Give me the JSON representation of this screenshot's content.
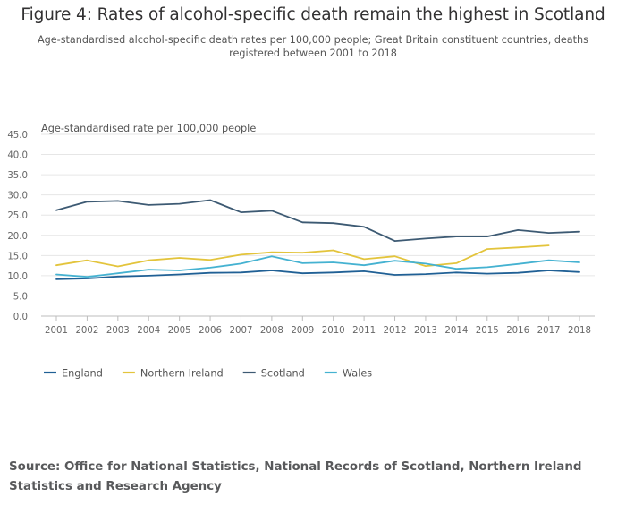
{
  "header": {
    "title": "Figure 4: Rates of alcohol-specific death remain the highest in Scotland",
    "subtitle": "Age-standardised alcohol-specific death rates per 100,000 people; Great Britain constituent countries, deaths registered between 2001 to 2018"
  },
  "footer": {
    "source": "Source: Office for National Statistics, National Records of Scotland, Northern Ireland Statistics and Research Agency"
  },
  "chart_data": {
    "type": "line",
    "ylabel": "Age-standardised rate per 100,000 people",
    "xlabel": "",
    "x": [
      "2001",
      "2002",
      "2003",
      "2004",
      "2005",
      "2006",
      "2007",
      "2008",
      "2009",
      "2010",
      "2011",
      "2012",
      "2013",
      "2014",
      "2015",
      "2016",
      "2017",
      "2018"
    ],
    "ylim": [
      0,
      45
    ],
    "yticks": [
      "0.0",
      "5.0",
      "10.0",
      "15.0",
      "20.0",
      "25.0",
      "30.0",
      "35.0",
      "40.0",
      "45.0"
    ],
    "grid": "horizontal",
    "legend_position": "bottom-left",
    "series": [
      {
        "name": "England",
        "color": "#206095",
        "values": [
          9.1,
          9.3,
          9.8,
          10.0,
          10.3,
          10.7,
          10.8,
          11.3,
          10.6,
          10.8,
          11.1,
          10.2,
          10.4,
          10.8,
          10.5,
          10.7,
          11.3,
          10.9
        ]
      },
      {
        "name": "Northern Ireland",
        "color": "#e3c43c",
        "values": [
          12.6,
          13.8,
          12.3,
          13.8,
          14.4,
          13.9,
          15.2,
          15.8,
          15.7,
          16.3,
          14.1,
          14.8,
          12.4,
          13.1,
          16.6,
          17.0,
          17.5,
          null
        ]
      },
      {
        "name": "Scotland",
        "color": "#3d5a73",
        "values": [
          26.2,
          28.3,
          28.5,
          27.5,
          27.8,
          28.7,
          25.7,
          26.1,
          23.2,
          23.0,
          22.1,
          18.6,
          19.2,
          19.7,
          19.7,
          21.3,
          20.6,
          20.9
        ]
      },
      {
        "name": "Wales",
        "color": "#45b2d1",
        "values": [
          10.3,
          9.7,
          10.6,
          11.5,
          11.3,
          12.0,
          13.0,
          14.8,
          13.1,
          13.3,
          12.6,
          13.7,
          13.0,
          11.7,
          12.1,
          12.9,
          13.8,
          13.3
        ]
      }
    ]
  }
}
